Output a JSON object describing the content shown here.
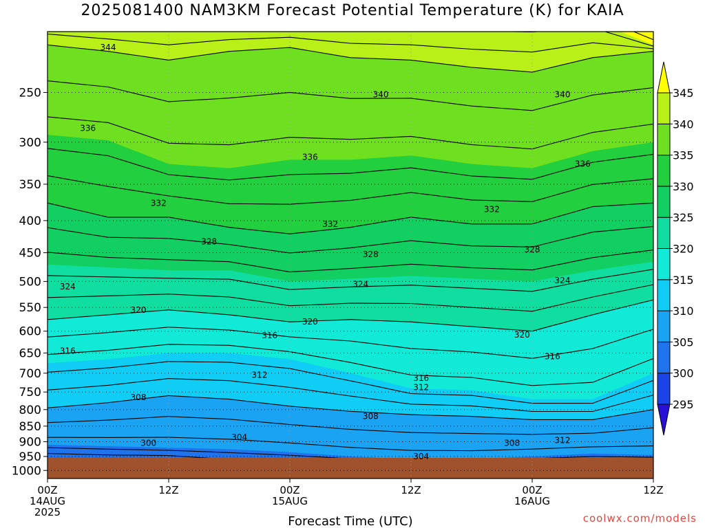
{
  "title": "2025081400 NAM3KM Forecast Potential Temperature (K) for KAIA",
  "credit": "coolwx.com/models",
  "chart_data": {
    "type": "contour",
    "title": "2025081400 NAM3KM Forecast Potential Temperature (K) for KAIA",
    "xlabel": "Forecast Time (UTC)",
    "ylabel": "",
    "x_ticks": [
      {
        "hour": 0,
        "lines": [
          "00Z",
          "14AUG",
          "2025"
        ]
      },
      {
        "hour": 12,
        "lines": [
          "12Z"
        ]
      },
      {
        "hour": 24,
        "lines": [
          "00Z",
          "15AUG"
        ]
      },
      {
        "hour": 36,
        "lines": [
          "12Z"
        ]
      },
      {
        "hour": 48,
        "lines": [
          "00Z",
          "16AUG"
        ]
      },
      {
        "hour": 60,
        "lines": [
          "12Z"
        ]
      }
    ],
    "xlim": [
      0,
      60
    ],
    "y_ticks": [
      250,
      300,
      350,
      400,
      450,
      500,
      550,
      600,
      650,
      700,
      750,
      800,
      850,
      900,
      950,
      1000
    ],
    "ylim": [
      200,
      1030
    ],
    "y_scale": "log-pressure",
    "grid": true,
    "colorbar": {
      "levels": [
        295,
        300,
        305,
        310,
        315,
        320,
        325,
        330,
        335,
        340,
        345
      ],
      "colors": [
        "#2a0fd6",
        "#1a44e6",
        "#1f73ec",
        "#19a3f2",
        "#10cdf5",
        "#12ead8",
        "#10dda0",
        "#12cf62",
        "#22cf3e",
        "#6fe020",
        "#b8f018",
        "#ffff00"
      ]
    },
    "profiles": [
      {
        "hour": 0,
        "p300": 960,
        "p305": 910,
        "p310": 795,
        "p315": 675,
        "p320": 575,
        "p325": 470,
        "p330": 375,
        "p335": 292,
        "p340": 210,
        "p345": 190
      },
      {
        "hour": 6,
        "p300": 965,
        "p305": 915,
        "p310": 780,
        "p315": 665,
        "p320": 565,
        "p325": 475,
        "p330": 395,
        "p335": 298,
        "p340": 215,
        "p345": 192
      },
      {
        "hour": 12,
        "p300": 965,
        "p305": 920,
        "p310": 760,
        "p315": 650,
        "p320": 555,
        "p325": 480,
        "p330": 395,
        "p335": 325,
        "p340": 222,
        "p345": 193
      },
      {
        "hour": 18,
        "p300": 985,
        "p305": 925,
        "p310": 770,
        "p315": 650,
        "p320": 565,
        "p325": 480,
        "p330": 410,
        "p335": 330,
        "p340": 215,
        "p345": 193
      },
      {
        "hour": 24,
        "p300": 990,
        "p305": 935,
        "p310": 790,
        "p315": 665,
        "p320": 580,
        "p325": 500,
        "p330": 420,
        "p335": 320,
        "p340": 212,
        "p345": 193
      },
      {
        "hour": 30,
        "p300": 990,
        "p305": 950,
        "p310": 805,
        "p315": 700,
        "p320": 575,
        "p325": 495,
        "p330": 410,
        "p335": 320,
        "p340": 220,
        "p345": 193
      },
      {
        "hour": 36,
        "p300": 990,
        "p305": 960,
        "p310": 815,
        "p315": 740,
        "p320": 580,
        "p325": 490,
        "p330": 395,
        "p335": 315,
        "p340": 222,
        "p345": 193
      },
      {
        "hour": 42,
        "p300": 990,
        "p305": 960,
        "p310": 820,
        "p315": 745,
        "p320": 590,
        "p325": 495,
        "p330": 405,
        "p335": 325,
        "p340": 228,
        "p345": 193
      },
      {
        "hour": 48,
        "p300": 990,
        "p305": 950,
        "p310": 830,
        "p315": 770,
        "p320": 600,
        "p325": 500,
        "p330": 405,
        "p335": 330,
        "p340": 232,
        "p345": 193
      },
      {
        "hour": 54,
        "p300": 990,
        "p305": 940,
        "p310": 830,
        "p315": 770,
        "p320": 565,
        "p325": 480,
        "p330": 380,
        "p335": 310,
        "p340": 220,
        "p345": 192
      },
      {
        "hour": 60,
        "p300": 985,
        "p305": 945,
        "p310": 800,
        "p315": 700,
        "p320": 535,
        "p325": 465,
        "p330": 375,
        "p335": 300,
        "p340": 215,
        "p345": 210
      }
    ],
    "contour_labels": [
      {
        "text": "344",
        "hour": 6,
        "p": 212
      },
      {
        "hour": 33,
        "p": 252,
        "text": "340"
      },
      {
        "hour": 51,
        "p": 252,
        "text": "340"
      },
      {
        "hour": 4,
        "p": 285,
        "text": "336"
      },
      {
        "hour": 26,
        "p": 317,
        "text": "336"
      },
      {
        "hour": 53,
        "p": 325,
        "text": "336"
      },
      {
        "hour": 11,
        "p": 375,
        "text": "332"
      },
      {
        "hour": 28,
        "p": 405,
        "text": "332"
      },
      {
        "hour": 44,
        "p": 384,
        "text": "332"
      },
      {
        "hour": 16,
        "p": 432,
        "text": "328"
      },
      {
        "hour": 32,
        "p": 453,
        "text": "328"
      },
      {
        "hour": 48,
        "p": 445,
        "text": "328"
      },
      {
        "hour": 2,
        "p": 510,
        "text": "324"
      },
      {
        "hour": 31,
        "p": 505,
        "text": "324"
      },
      {
        "hour": 51,
        "p": 498,
        "text": "324"
      },
      {
        "hour": 9,
        "p": 555,
        "text": "320"
      },
      {
        "hour": 26,
        "p": 580,
        "text": "320"
      },
      {
        "hour": 47,
        "p": 608,
        "text": "320"
      },
      {
        "hour": 2,
        "p": 645,
        "text": "316"
      },
      {
        "hour": 22,
        "p": 610,
        "text": "316"
      },
      {
        "hour": 37,
        "p": 713,
        "text": "316"
      },
      {
        "hour": 50,
        "p": 658,
        "text": "316"
      },
      {
        "hour": 37,
        "p": 737,
        "text": "312"
      },
      {
        "hour": 21,
        "p": 705,
        "text": "312"
      },
      {
        "hour": 51,
        "p": 895,
        "text": "312"
      },
      {
        "hour": 9,
        "p": 765,
        "text": "308"
      },
      {
        "hour": 32,
        "p": 820,
        "text": "308"
      },
      {
        "hour": 46,
        "p": 905,
        "text": "308"
      },
      {
        "hour": 19,
        "p": 885,
        "text": "304"
      },
      {
        "hour": 37,
        "p": 950,
        "text": "304"
      },
      {
        "hour": 10,
        "p": 905,
        "text": "300"
      }
    ]
  }
}
